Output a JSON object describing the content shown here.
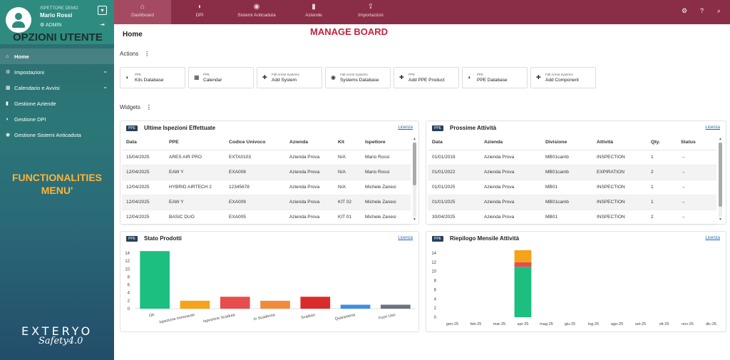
{
  "user": {
    "role": "ISPETTORE DEMO",
    "name": "Mario Rossi",
    "admin_label": "ADMIN"
  },
  "annotations": {
    "user_options": "OPZIONI UTENTE",
    "functionalities_line1": "FUNCTIONALITIES",
    "functionalities_line2": "MENU'",
    "manage_board": "MANAGE BOARD"
  },
  "sidebar": {
    "items": [
      {
        "label": "Home",
        "icon": "home-icon"
      },
      {
        "label": "Impostazioni",
        "icon": "gear-icon"
      },
      {
        "label": "Calendario e Avvisi",
        "icon": "calendar-icon"
      },
      {
        "label": "Gestione Aziende",
        "icon": "building-icon"
      },
      {
        "label": "Gestione DPI",
        "icon": "shield-icon"
      },
      {
        "label": "Gestione Sistemi Anticaduta",
        "icon": "globe-icon"
      }
    ],
    "logo": "EXTERYO",
    "logo_sub": "Safety4.0"
  },
  "topnav": {
    "items": [
      {
        "label": "Dashboard",
        "icon": "home-icon"
      },
      {
        "label": "DPI",
        "icon": "shield-icon"
      },
      {
        "label": "Sistemi Anticaduta",
        "icon": "globe-icon"
      },
      {
        "label": "Aziende",
        "icon": "building-icon"
      },
      {
        "label": "Importazioni",
        "icon": "upload-icon"
      }
    ]
  },
  "main": {
    "title": "Home",
    "actions_label": "Actions",
    "widgets_label": "Widgets",
    "actions": [
      {
        "small": "PPE",
        "big": "Kits Database",
        "icon": "shield-icon"
      },
      {
        "small": "PPE",
        "big": "Calendar",
        "icon": "calendar-icon"
      },
      {
        "small": "Fall Arrest Systems",
        "big": "Add System",
        "icon": "plus-icon"
      },
      {
        "small": "Fall Arrest Systems",
        "big": "Systems Database",
        "icon": "globe-icon"
      },
      {
        "small": "PPE",
        "big": "Add PPE Product",
        "icon": "plus-icon"
      },
      {
        "small": "PPE",
        "big": "PPE Database",
        "icon": "shield-icon"
      },
      {
        "small": "Fall Arrest Systems",
        "big": "Add Component",
        "icon": "plus-icon"
      }
    ]
  },
  "widgets": {
    "badge": "PPE",
    "licenza": "Licenza",
    "inspections": {
      "title": "Ultime Ispezioni Effettuate",
      "headers": [
        "Data",
        "PPE",
        "Codice Univoco",
        "Azienda",
        "Kit",
        "Ispettore"
      ],
      "rows": [
        [
          "15/04/2025",
          "ARES AIR PRO",
          "EXTA0103",
          "Azienda Prova",
          "N/A",
          "Mario Rossi"
        ],
        [
          "12/04/2025",
          "EAW Y",
          "EXA008",
          "Azienda Prova",
          "N/A",
          "Mario Rossi"
        ],
        [
          "12/04/2025",
          "HYBRID AIRTECH 2",
          "12345678",
          "Azienda Prova",
          "N/A",
          "Michele Zanesi"
        ],
        [
          "12/04/2025",
          "EAW Y",
          "EXA009",
          "Azienda Prova",
          "KIT 02",
          "Michele Zanesi"
        ],
        [
          "12/04/2025",
          "BASIC DUO",
          "EXA005",
          "Azienda Prova",
          "KIT 01",
          "Michele Zanesi"
        ]
      ]
    },
    "activities": {
      "title": "Prossime Attività",
      "headers": [
        "Data",
        "Azienda",
        "Divisione",
        "Attività",
        "Qty.",
        "Status"
      ],
      "rows": [
        [
          "01/01/2019",
          "Azienda Prova",
          "MB01camb",
          "INSPECTION",
          "1",
          "→"
        ],
        [
          "01/01/2022",
          "Azienda Prova",
          "MB01camb",
          "EXPIRATION",
          "2",
          "→"
        ],
        [
          "01/01/2025",
          "Azienda Prova",
          "MB01",
          "INSPECTION",
          "1",
          "→"
        ],
        [
          "01/01/2025",
          "Azienda Prova",
          "MB01camb",
          "INSPECTION",
          "1",
          "→"
        ],
        [
          "30/04/2025",
          "Azienda Prova",
          "MB01",
          "INSPECTION",
          "2",
          "→"
        ]
      ]
    }
  },
  "chart_data": [
    {
      "type": "bar",
      "title": "Stato Prodotti",
      "categories": [
        "OK",
        "Ispezione Imminente",
        "Ispezione Scaduta",
        "In Scadenza",
        "Scaduto",
        "Quarantena",
        "Fuori Uso"
      ],
      "values": [
        14.5,
        2,
        3,
        2,
        3,
        1,
        1
      ],
      "colors": [
        "#1cbf7f",
        "#f5a31a",
        "#e84c4c",
        "#f28a3c",
        "#d92b2b",
        "#3e8fe0",
        "#6b7280"
      ],
      "ylim": [
        0,
        14
      ],
      "yticks": [
        0,
        2,
        4,
        6,
        8,
        10,
        12,
        14
      ],
      "grid": false
    },
    {
      "type": "bar",
      "stacked": true,
      "title": "Riepilogo Mensile Attività",
      "categories": [
        "gen-25",
        "feb-25",
        "mar-25",
        "apr-25",
        "mag-25",
        "giu-25",
        "lug-25",
        "ago-25",
        "set-25",
        "ott-25",
        "nov-25",
        "dic-25"
      ],
      "series": [
        {
          "values": [
            0,
            0,
            0,
            11,
            0,
            0,
            0,
            0,
            0,
            0,
            0,
            0
          ],
          "color": "#1cbf7f"
        },
        {
          "values": [
            0,
            0,
            0,
            1,
            0,
            0,
            0,
            0,
            0,
            0,
            0,
            0
          ],
          "color": "#e84c4c"
        },
        {
          "values": [
            0,
            0,
            0,
            3,
            0,
            0,
            0,
            0,
            0,
            0,
            0,
            0
          ],
          "color": "#f5a31a"
        }
      ],
      "ylim": [
        0,
        14
      ],
      "yticks": [
        0,
        2,
        4,
        6,
        8,
        10,
        12,
        14
      ],
      "grid": false
    }
  ]
}
